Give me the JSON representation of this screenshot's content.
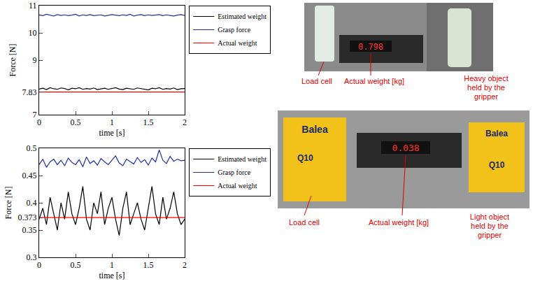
{
  "chart_data": [
    {
      "type": "line",
      "x_label": "time [s]",
      "y_label": "Force [N]",
      "x": [
        0,
        0.05,
        0.1,
        0.15,
        0.2,
        0.25,
        0.3,
        0.35,
        0.4,
        0.45,
        0.5,
        0.55,
        0.6,
        0.65,
        0.7,
        0.75,
        0.8,
        0.85,
        0.9,
        0.95,
        1,
        1.05,
        1.1,
        1.15,
        1.2,
        1.25,
        1.3,
        1.35,
        1.4,
        1.45,
        1.5,
        1.55,
        1.6,
        1.65,
        1.7,
        1.75,
        1.8,
        1.85,
        1.9,
        1.95,
        2
      ],
      "series": [
        {
          "name": "Estimated weight",
          "color": "#000000",
          "values": [
            7.94,
            7.97,
            7.92,
            7.99,
            7.95,
            7.93,
            7.98,
            7.96,
            7.91,
            7.97,
            7.95,
            7.99,
            7.93,
            7.96,
            7.94,
            7.98,
            7.92,
            7.95,
            7.97,
            7.93,
            7.96,
            7.99,
            7.94,
            7.92,
            7.97,
            7.95,
            7.93,
            7.98,
            7.96,
            7.94,
            7.91,
            7.97,
            7.95,
            7.99,
            7.93,
            7.96,
            7.94,
            7.98,
            7.92,
            7.95,
            7.96
          ]
        },
        {
          "name": "Grasp force",
          "color": "#1f2f9f",
          "values": [
            10.66,
            10.63,
            10.68,
            10.65,
            10.62,
            10.67,
            10.64,
            10.66,
            10.63,
            10.65,
            10.68,
            10.62,
            10.66,
            10.64,
            10.67,
            10.63,
            10.65,
            10.66,
            10.62,
            10.64,
            10.67,
            10.65,
            10.63,
            10.66,
            10.64,
            10.68,
            10.62,
            10.65,
            10.67,
            10.63,
            10.66,
            10.64,
            10.65,
            10.67,
            10.63,
            10.66,
            10.64,
            10.62,
            10.65,
            10.67,
            10.64
          ]
        },
        {
          "name": "Actual weight",
          "color": "#ff0000",
          "x": [
            0,
            2
          ],
          "values": [
            7.83,
            7.83
          ]
        }
      ],
      "xlim": [
        0,
        2
      ],
      "xticks": [
        0,
        0.5,
        1,
        1.5,
        2
      ],
      "ylim": [
        7,
        11
      ],
      "yticks": [
        7,
        7.83,
        9,
        10,
        11
      ],
      "grid": false,
      "legend": "outside top right"
    },
    {
      "type": "line",
      "x_label": "time [s]",
      "y_label": "Force [N]",
      "x": [
        0,
        0.05,
        0.1,
        0.15,
        0.2,
        0.25,
        0.3,
        0.35,
        0.4,
        0.45,
        0.5,
        0.55,
        0.6,
        0.65,
        0.7,
        0.75,
        0.8,
        0.85,
        0.9,
        0.95,
        1,
        1.05,
        1.1,
        1.15,
        1.2,
        1.25,
        1.3,
        1.35,
        1.4,
        1.45,
        1.5,
        1.55,
        1.6,
        1.65,
        1.7,
        1.75,
        1.8,
        1.85,
        1.9,
        1.95,
        2
      ],
      "series": [
        {
          "name": "Estimated weight",
          "color": "#000000",
          "values": [
            0.37,
            0.39,
            0.36,
            0.41,
            0.38,
            0.35,
            0.4,
            0.37,
            0.42,
            0.38,
            0.36,
            0.39,
            0.43,
            0.37,
            0.35,
            0.4,
            0.38,
            0.42,
            0.36,
            0.39,
            0.41,
            0.37,
            0.34,
            0.39,
            0.42,
            0.36,
            0.38,
            0.4,
            0.37,
            0.35,
            0.39,
            0.43,
            0.38,
            0.36,
            0.41,
            0.37,
            0.39,
            0.42,
            0.38,
            0.36,
            0.37
          ]
        },
        {
          "name": "Grasp force",
          "color": "#1f2f9f",
          "values": [
            0.47,
            0.48,
            0.465,
            0.475,
            0.48,
            0.47,
            0.478,
            0.468,
            0.482,
            0.474,
            0.47,
            0.479,
            0.466,
            0.484,
            0.472,
            0.477,
            0.469,
            0.481,
            0.475,
            0.47,
            0.478,
            0.486,
            0.473,
            0.468,
            0.48,
            0.476,
            0.471,
            0.483,
            0.474,
            0.479,
            0.469,
            0.482,
            0.475,
            0.497,
            0.478,
            0.472,
            0.485,
            0.476,
            0.48,
            0.477,
            0.478
          ]
        },
        {
          "name": "Actual weight",
          "color": "#ff0000",
          "x": [
            0,
            2
          ],
          "values": [
            0.373,
            0.373
          ]
        }
      ],
      "xlim": [
        0,
        2
      ],
      "xticks": [
        0,
        0.5,
        1,
        1.5,
        2
      ],
      "ylim": [
        0.3,
        0.5
      ],
      "yticks": [
        0.3,
        0.35,
        0.373,
        0.4,
        0.45,
        0.5
      ],
      "grid": false,
      "legend": "outside top right"
    }
  ],
  "photos": [
    {
      "readout": "0.798",
      "labels": [
        "Load cell",
        "Actual weight [kg]",
        "Heavy object held by the gripper"
      ]
    },
    {
      "readout": "0.038",
      "product_texts": [
        "Balea",
        "Q10"
      ],
      "labels": [
        "Load cell",
        "Actual weight [kg]",
        "Light object held by the gripper"
      ]
    }
  ]
}
